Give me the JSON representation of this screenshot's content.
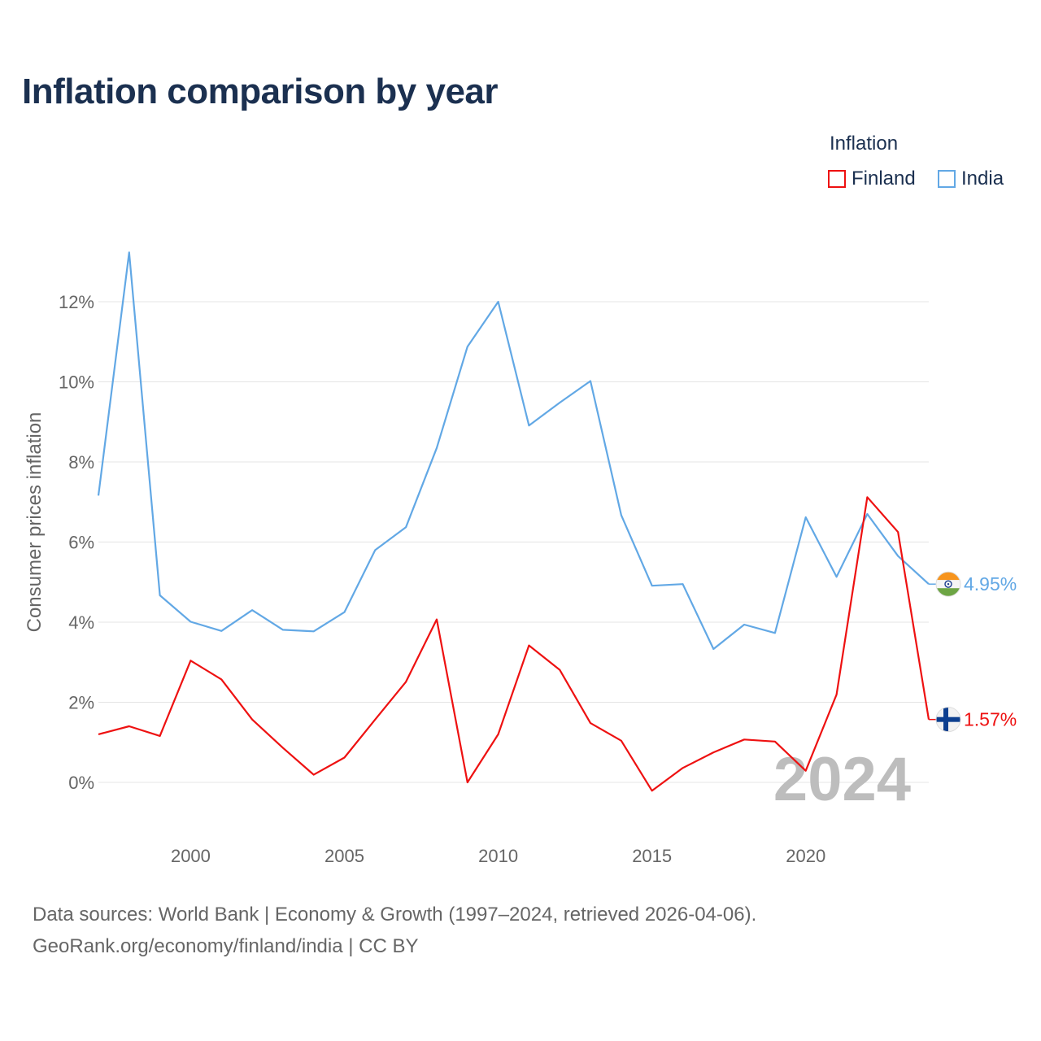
{
  "title": "Inflation comparison by year",
  "legend": {
    "title": "Inflation",
    "items": [
      {
        "name": "Finland",
        "color": "#ee1111"
      },
      {
        "name": "India",
        "color": "#62a8e5"
      }
    ]
  },
  "chart_data": {
    "type": "line",
    "title": "Inflation comparison by year",
    "xlabel": "",
    "ylabel": "Consumer prices inflation",
    "x": [
      1997,
      1998,
      1999,
      2000,
      2001,
      2002,
      2003,
      2004,
      2005,
      2006,
      2007,
      2008,
      2009,
      2010,
      2011,
      2012,
      2013,
      2014,
      2015,
      2016,
      2017,
      2018,
      2019,
      2020,
      2021,
      2022,
      2023,
      2024
    ],
    "series": [
      {
        "name": "Finland",
        "color": "#ee1111",
        "values": [
          1.2,
          1.4,
          1.16,
          3.04,
          2.57,
          1.57,
          0.86,
          0.19,
          0.62,
          1.57,
          2.51,
          4.07,
          0.0,
          1.2,
          3.42,
          2.81,
          1.48,
          1.04,
          -0.21,
          0.36,
          0.75,
          1.07,
          1.02,
          0.29,
          2.19,
          7.12,
          6.25,
          1.57
        ]
      },
      {
        "name": "India",
        "color": "#62a8e5",
        "values": [
          7.16,
          13.23,
          4.67,
          4.01,
          3.78,
          4.3,
          3.81,
          3.77,
          4.25,
          5.8,
          6.37,
          8.35,
          10.88,
          12.0,
          8.91,
          9.48,
          10.02,
          6.67,
          4.91,
          4.95,
          3.33,
          3.94,
          3.73,
          6.62,
          5.13,
          6.7,
          5.65,
          4.95
        ]
      }
    ],
    "y_ticks": [
      0,
      2,
      4,
      6,
      8,
      10,
      12
    ],
    "y_tick_labels": [
      "0%",
      "2%",
      "4%",
      "6%",
      "8%",
      "10%",
      "12%"
    ],
    "x_ticks": [
      2000,
      2005,
      2010,
      2015,
      2020
    ],
    "x_tick_labels": [
      "2000",
      "2005",
      "2010",
      "2015",
      "2020"
    ],
    "xlim": [
      1997,
      2024
    ],
    "ylim": [
      -1.8,
      13.5
    ],
    "grid": true,
    "legend_position": "top-right",
    "end_labels": [
      {
        "series": "India",
        "text": "4.95%",
        "flag": "india-flag"
      },
      {
        "series": "Finland",
        "text": "1.57%",
        "flag": "finland-flag"
      }
    ],
    "year_watermark": "2024"
  },
  "source": {
    "line1": "Data sources: World Bank | Economy & Growth (1997–2024, retrieved 2026-04-06).",
    "line2": "GeoRank.org/economy/finland/india | CC BY"
  }
}
